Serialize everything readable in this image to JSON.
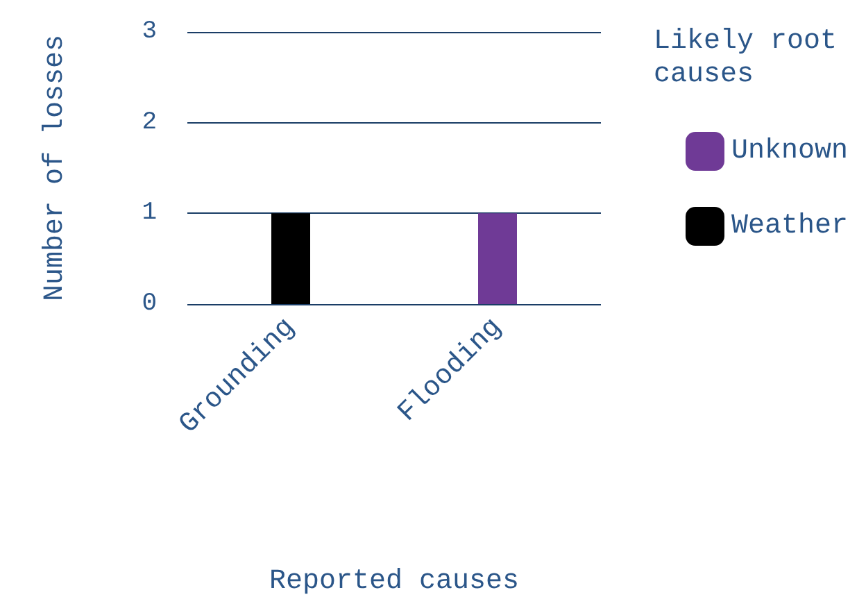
{
  "chart_data": {
    "type": "bar",
    "xlabel": "Reported causes",
    "ylabel": "Number of losses",
    "legend_title": "Likely root causes",
    "categories": [
      "Grounding",
      "Flooding"
    ],
    "series": [
      {
        "name": "Unknown",
        "color": "#6f3a96",
        "values": [
          null,
          1
        ]
      },
      {
        "name": "Weather",
        "color": "#000000",
        "values": [
          1,
          null
        ]
      }
    ],
    "stacked": true,
    "ylim": [
      0,
      3
    ],
    "yticks": [
      0,
      1,
      2,
      3
    ],
    "grid": "y",
    "legend": "right"
  }
}
